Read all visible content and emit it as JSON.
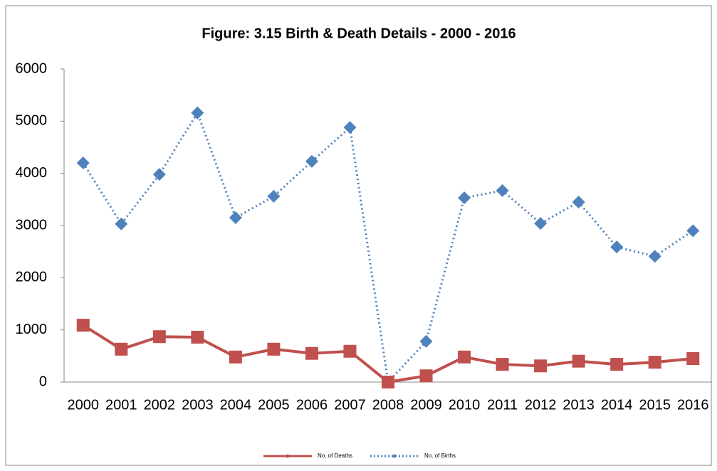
{
  "chart_data": {
    "type": "line",
    "title": "Figure: 3.15 Birth & Death Details  - 2000 - 2016",
    "categories": [
      "2000",
      "2001",
      "2002",
      "2003",
      "2004",
      "2005",
      "2006",
      "2007",
      "2008",
      "2009",
      "2010",
      "2011",
      "2012",
      "2013",
      "2014",
      "2015",
      "2016"
    ],
    "series": [
      {
        "name": "No. of Deaths",
        "color": "#c0504d",
        "line_style": "solid",
        "marker": "square",
        "values": [
          1090,
          630,
          870,
          860,
          480,
          630,
          550,
          590,
          0,
          120,
          480,
          340,
          310,
          400,
          340,
          380,
          450
        ]
      },
      {
        "name": "No. of Births",
        "color": "#4f81bd",
        "line_style": "dotted",
        "marker": "diamond",
        "values": [
          4200,
          3030,
          3980,
          5160,
          3150,
          3560,
          4230,
          4880,
          0,
          780,
          3530,
          3670,
          3040,
          3450,
          2590,
          2410,
          2900
        ]
      }
    ],
    "ylim": [
      0,
      6000
    ],
    "yticks": [
      0,
      1000,
      2000,
      3000,
      4000,
      5000,
      6000
    ],
    "grid": false,
    "legend": "bottom"
  }
}
